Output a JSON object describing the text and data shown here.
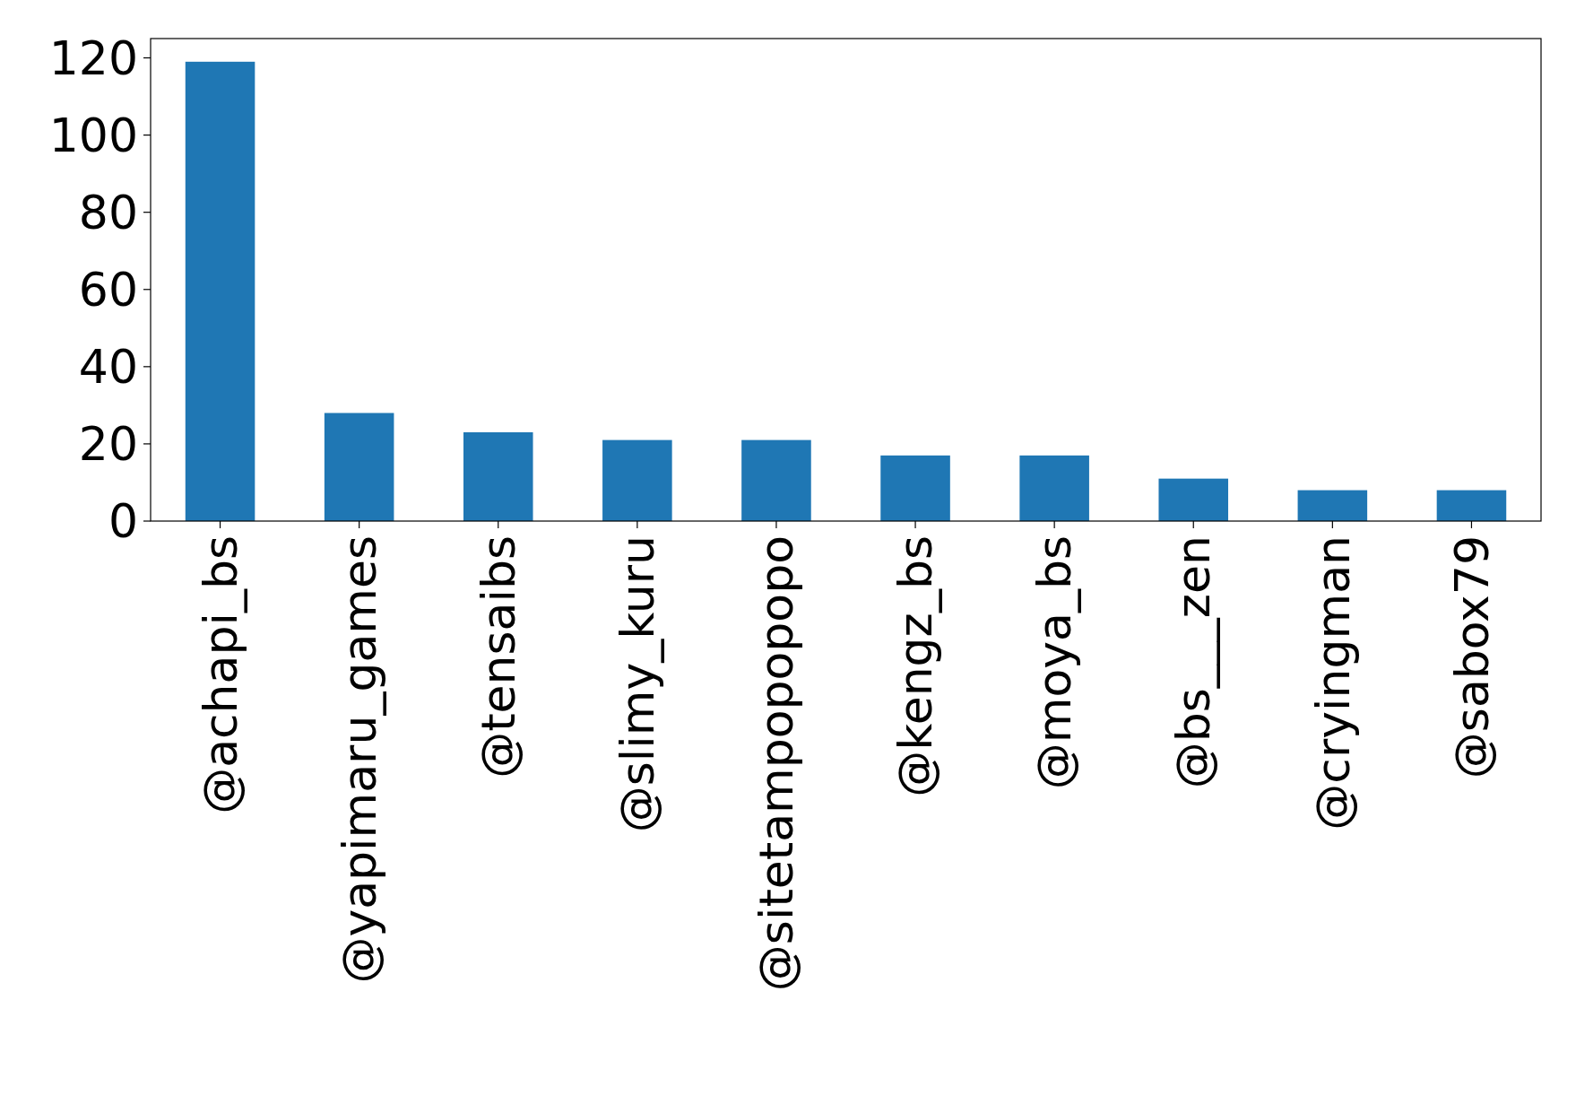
{
  "chart_data": {
    "type": "bar",
    "categories": [
      "@achapi_bs",
      "@yapimaru_games",
      "@tensaibs",
      "@slimy_kuru",
      "@sitetampopopopo",
      "@kengz_bs",
      "@moya_bs",
      "@bs___zen",
      "@cryingman",
      "@sabox79"
    ],
    "values": [
      119,
      28,
      23,
      21,
      21,
      17,
      17,
      11,
      8,
      8
    ],
    "color": "#1f77b4",
    "ylim": [
      0,
      125
    ],
    "yticks": [
      0,
      20,
      40,
      60,
      80,
      100,
      120
    ],
    "grid": false
  }
}
